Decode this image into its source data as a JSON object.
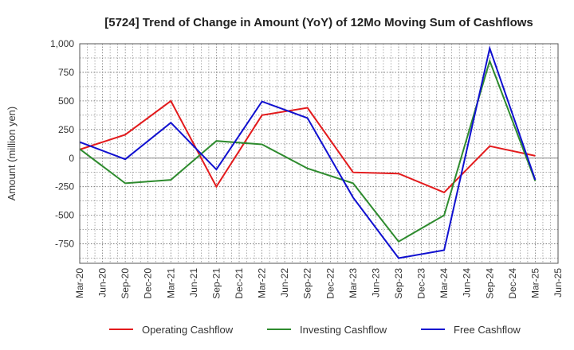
{
  "chart_data": {
    "type": "line",
    "title": "[5724]  Trend of Change in Amount (YoY) of 12Mo Moving Sum of Cashflows",
    "xlabel": "",
    "ylabel": "Amount (million yen)",
    "ylim": [
      -920,
      1000
    ],
    "yticks": [
      1000,
      750,
      500,
      250,
      0,
      -250,
      -500,
      -750
    ],
    "ytick_labels": [
      "1,000",
      "750",
      "500",
      "250",
      "0",
      "-250",
      "-500",
      "-750"
    ],
    "x_tick_labels": [
      "Mar-20",
      "Jun-20",
      "Sep-20",
      "Dec-20",
      "Mar-21",
      "Jun-21",
      "Sep-21",
      "Dec-21",
      "Mar-22",
      "Jun-22",
      "Sep-22",
      "Dec-22",
      "Mar-23",
      "Jun-23",
      "Sep-23",
      "Dec-23",
      "Mar-24",
      "Jun-24",
      "Sep-24",
      "Dec-24",
      "Mar-25",
      "Jun-25"
    ],
    "grid": true,
    "legend_position": "bottom",
    "series": [
      {
        "name": "Operating Cashflow",
        "color": "#e31a1c",
        "points": [
          {
            "x": "Mar-20",
            "y": 75
          },
          {
            "x": "Sep-20",
            "y": 205
          },
          {
            "x": "Mar-21",
            "y": 500
          },
          {
            "x": "Sep-21",
            "y": -250
          },
          {
            "x": "Mar-22",
            "y": 375
          },
          {
            "x": "Sep-22",
            "y": 440
          },
          {
            "x": "Mar-23",
            "y": -125
          },
          {
            "x": "Sep-23",
            "y": -135
          },
          {
            "x": "Mar-24",
            "y": -300
          },
          {
            "x": "Sep-24",
            "y": 105
          },
          {
            "x": "Mar-25",
            "y": 20
          }
        ]
      },
      {
        "name": "Investing Cashflow",
        "color": "#2e8b2e",
        "points": [
          {
            "x": "Mar-20",
            "y": 80
          },
          {
            "x": "Sep-20",
            "y": -220
          },
          {
            "x": "Mar-21",
            "y": -190
          },
          {
            "x": "Sep-21",
            "y": 150
          },
          {
            "x": "Mar-22",
            "y": 120
          },
          {
            "x": "Sep-22",
            "y": -90
          },
          {
            "x": "Mar-23",
            "y": -220
          },
          {
            "x": "Sep-23",
            "y": -730
          },
          {
            "x": "Mar-24",
            "y": -500
          },
          {
            "x": "Sep-24",
            "y": 850
          },
          {
            "x": "Mar-25",
            "y": -200
          }
        ]
      },
      {
        "name": "Free Cashflow",
        "color": "#1010d0",
        "points": [
          {
            "x": "Mar-20",
            "y": 140
          },
          {
            "x": "Sep-20",
            "y": -10
          },
          {
            "x": "Mar-21",
            "y": 310
          },
          {
            "x": "Sep-21",
            "y": -100
          },
          {
            "x": "Mar-22",
            "y": 495
          },
          {
            "x": "Sep-22",
            "y": 350
          },
          {
            "x": "Mar-23",
            "y": -345
          },
          {
            "x": "Sep-23",
            "y": -875
          },
          {
            "x": "Mar-24",
            "y": -805
          },
          {
            "x": "Sep-24",
            "y": 960
          },
          {
            "x": "Mar-25",
            "y": -190
          }
        ]
      }
    ]
  }
}
